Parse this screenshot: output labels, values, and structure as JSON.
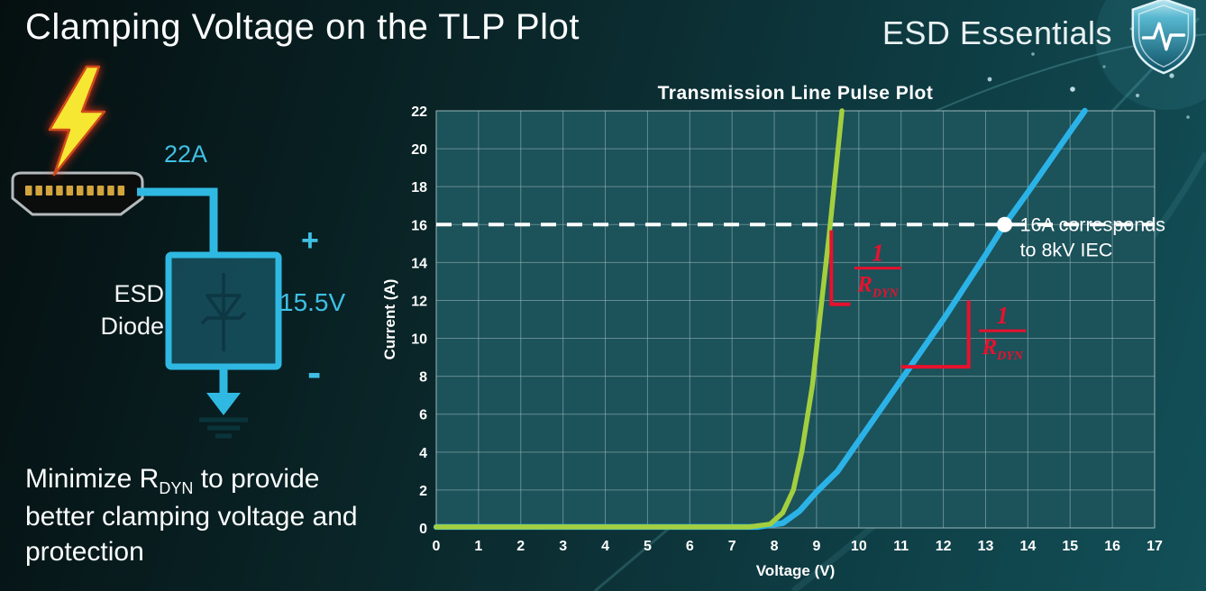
{
  "slide": {
    "title": "Clamping Voltage on the TLP Plot",
    "brand": "ESD Essentials",
    "caption": {
      "part1": "Minimize R",
      "sub": "DYN",
      "part2": " to provide better clamping voltage and protection"
    }
  },
  "diagram": {
    "surge_current": "22A",
    "plus": "+",
    "clamp_voltage": "15.5V",
    "minus": "-",
    "device_label": "ESD Diode"
  },
  "colors": {
    "accent_cyan": "#3fc0e4",
    "curve_green": "#a3cf3f",
    "curve_blue": "#2bb3e8",
    "annotation_red": "#e8112d",
    "bolt_yellow": "#f6e832"
  },
  "chart_data": {
    "type": "line",
    "title": "Transmission Line Pulse Plot",
    "xlabel": "Voltage (V)",
    "ylabel": "Current (A)",
    "xlim": [
      0,
      17
    ],
    "ylim": [
      0,
      22
    ],
    "xticks": [
      0,
      1,
      2,
      3,
      4,
      5,
      6,
      7,
      8,
      9,
      10,
      11,
      12,
      13,
      14,
      15,
      16,
      17
    ],
    "yticks": [
      0,
      2,
      4,
      6,
      8,
      10,
      12,
      14,
      16,
      18,
      20,
      22
    ],
    "grid": true,
    "plot_bg": "#1c525a",
    "grid_color": "rgba(160,190,193,0.55)",
    "series": [
      {
        "name": "blue-curve",
        "color": "#2bb3e8",
        "width": 6.5,
        "points": [
          [
            0,
            0.05
          ],
          [
            7.6,
            0.05
          ],
          [
            8.2,
            0.25
          ],
          [
            8.6,
            0.9
          ],
          [
            9.0,
            1.9
          ],
          [
            9.5,
            3.0
          ],
          [
            10,
            4.6
          ],
          [
            11,
            7.8
          ],
          [
            12,
            11.0
          ],
          [
            13,
            14.4
          ],
          [
            13.45,
            16
          ],
          [
            14,
            17.7
          ],
          [
            15,
            20.9
          ],
          [
            15.35,
            22
          ]
        ]
      },
      {
        "name": "green-curve",
        "color": "#a3cf3f",
        "width": 5.5,
        "points": [
          [
            0,
            0.05
          ],
          [
            7.4,
            0.05
          ],
          [
            7.9,
            0.2
          ],
          [
            8.2,
            0.8
          ],
          [
            8.45,
            2
          ],
          [
            8.65,
            4
          ],
          [
            8.9,
            7.5
          ],
          [
            9.1,
            11.5
          ],
          [
            9.3,
            15.5
          ],
          [
            9.6,
            22
          ]
        ]
      }
    ],
    "reference_line": {
      "y": 16,
      "color": "#ffffff",
      "style": "dashed"
    },
    "marker": {
      "x": 13.45,
      "y": 16,
      "color": "#ffffff",
      "label_lines": [
        "16A corresponds",
        "to 8kV IEC"
      ]
    },
    "annotations": [
      {
        "name": "rdyn-slope-green",
        "color": "#e8112d",
        "bracket": [
          [
            9.35,
            15.7
          ],
          [
            9.35,
            11.8
          ],
          [
            9.8,
            11.8
          ]
        ],
        "frac_pos": [
          10.45,
          13.7
        ],
        "numerator": "1",
        "denominator_base": "R",
        "denominator_sub": "DYN"
      },
      {
        "name": "rdyn-slope-blue",
        "color": "#e8112d",
        "bracket": [
          [
            11.0,
            8.5
          ],
          [
            12.6,
            8.5
          ],
          [
            12.6,
            12.0
          ]
        ],
        "frac_pos": [
          13.4,
          10.4
        ],
        "numerator": "1",
        "denominator_base": "R",
        "denominator_sub": "DYN"
      }
    ]
  }
}
